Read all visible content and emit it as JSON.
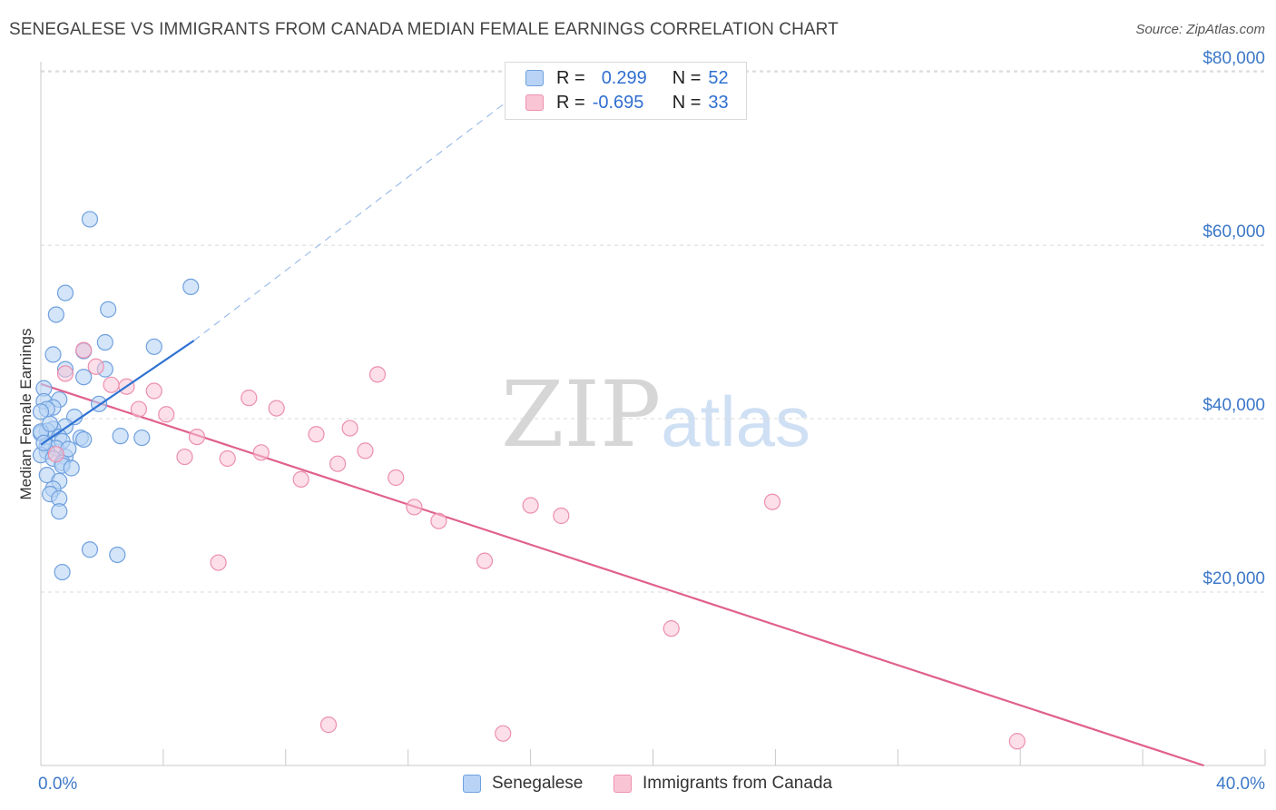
{
  "title": "SENEGALESE VS IMMIGRANTS FROM CANADA MEDIAN FEMALE EARNINGS CORRELATION CHART",
  "source": "Source: ZipAtlas.com",
  "watermark": {
    "zip": "ZIP",
    "atlas": "atlas"
  },
  "legend": {
    "r_label": "R =",
    "n_label": "N =",
    "series1": {
      "r": "0.299",
      "n": "52"
    },
    "series2": {
      "r": "-0.695",
      "n": "33"
    }
  },
  "bottom_legend": {
    "series1": "Senegalese",
    "series2": "Immigrants from Canada"
  },
  "colors": {
    "series1_fill": "#b8d3f5",
    "series1_stroke": "#6fa0de",
    "series1_line": "#2f72d2",
    "series2_fill": "#f9c5d5",
    "series2_stroke": "#ec8fae",
    "series2_line": "#e0608e",
    "tick_text": "#3c78c8",
    "grid": "#d8d8d8"
  },
  "chart_data": {
    "type": "scatter",
    "title": "SENEGALESE VS IMMIGRANTS FROM CANADA MEDIAN FEMALE EARNINGS CORRELATION CHART",
    "xlabel": "",
    "ylabel": "Median Female Earnings",
    "xlim": [
      0,
      40
    ],
    "ylim": [
      0,
      82000
    ],
    "y_ticks": [
      {
        "value": 20000,
        "label": "$20,000"
      },
      {
        "value": 40000,
        "label": "$40,000"
      },
      {
        "value": 60000,
        "label": "$60,000"
      },
      {
        "value": 80000,
        "label": "$80,000"
      }
    ],
    "x_tick_labels": [
      {
        "value": 0,
        "label": "0.0%"
      },
      {
        "value": 40,
        "label": "40.0%"
      }
    ],
    "x_minor_ticks": [
      0,
      4,
      8,
      12,
      16,
      20,
      24,
      28,
      32,
      36,
      40
    ],
    "grid": true,
    "series": [
      {
        "name": "Senegalese",
        "r": 0.299,
        "n": 52,
        "trend": {
          "x0": 0,
          "y0": 37000,
          "x1": 5,
          "y1": 49000,
          "dash_to_x": 16.5,
          "dash_to_y": 80000
        },
        "points": [
          [
            1.6,
            63000
          ],
          [
            0.8,
            54500
          ],
          [
            4.9,
            55200
          ],
          [
            0.5,
            52000
          ],
          [
            2.2,
            52600
          ],
          [
            2.1,
            48800
          ],
          [
            3.7,
            48300
          ],
          [
            0.4,
            47400
          ],
          [
            1.4,
            47800
          ],
          [
            0.8,
            45700
          ],
          [
            2.1,
            45700
          ],
          [
            1.4,
            44800
          ],
          [
            0.1,
            43500
          ],
          [
            0.6,
            42200
          ],
          [
            0.1,
            42000
          ],
          [
            1.9,
            41700
          ],
          [
            0.4,
            41300
          ],
          [
            0.2,
            41100
          ],
          [
            0.0,
            40800
          ],
          [
            1.1,
            40200
          ],
          [
            0.8,
            39100
          ],
          [
            0.4,
            38800
          ],
          [
            0.2,
            38600
          ],
          [
            0.0,
            38300
          ],
          [
            0.6,
            37900
          ],
          [
            1.3,
            37800
          ],
          [
            1.4,
            37600
          ],
          [
            2.6,
            38000
          ],
          [
            3.3,
            37800
          ],
          [
            0.7,
            37400
          ],
          [
            0.2,
            36900
          ],
          [
            0.5,
            36600
          ],
          [
            0.2,
            36200
          ],
          [
            0.0,
            35800
          ],
          [
            0.8,
            35600
          ],
          [
            0.4,
            35400
          ],
          [
            0.7,
            34900
          ],
          [
            0.7,
            34600
          ],
          [
            1.0,
            34300
          ],
          [
            0.2,
            33500
          ],
          [
            0.6,
            32800
          ],
          [
            0.4,
            31900
          ],
          [
            0.3,
            31300
          ],
          [
            0.6,
            30800
          ],
          [
            0.6,
            29300
          ],
          [
            1.6,
            24900
          ],
          [
            2.5,
            24300
          ],
          [
            0.7,
            22300
          ],
          [
            0.0,
            38500
          ],
          [
            0.1,
            37200
          ],
          [
            0.9,
            36500
          ],
          [
            0.3,
            39400
          ]
        ]
      },
      {
        "name": "Immigrants from Canada",
        "r": -0.695,
        "n": 33,
        "trend": {
          "x0": 0,
          "y0": 44000,
          "x1": 38,
          "y1": 0
        },
        "points": [
          [
            1.4,
            47900
          ],
          [
            0.8,
            45200
          ],
          [
            1.8,
            46000
          ],
          [
            2.3,
            43900
          ],
          [
            2.8,
            43700
          ],
          [
            3.7,
            43200
          ],
          [
            3.2,
            41100
          ],
          [
            4.1,
            40500
          ],
          [
            6.8,
            42400
          ],
          [
            7.7,
            41200
          ],
          [
            5.1,
            37900
          ],
          [
            4.7,
            35600
          ],
          [
            6.1,
            35400
          ],
          [
            7.2,
            36100
          ],
          [
            8.5,
            33000
          ],
          [
            9.0,
            38200
          ],
          [
            9.7,
            34800
          ],
          [
            10.1,
            38900
          ],
          [
            10.6,
            36300
          ],
          [
            11.0,
            45100
          ],
          [
            11.6,
            33200
          ],
          [
            12.2,
            29800
          ],
          [
            13.0,
            28200
          ],
          [
            16.0,
            30000
          ],
          [
            17.0,
            28800
          ],
          [
            14.5,
            23600
          ],
          [
            5.8,
            23400
          ],
          [
            23.9,
            30400
          ],
          [
            20.6,
            15800
          ],
          [
            9.4,
            4700
          ],
          [
            15.1,
            3700
          ],
          [
            31.9,
            2800
          ],
          [
            0.5,
            35900
          ]
        ]
      }
    ]
  }
}
